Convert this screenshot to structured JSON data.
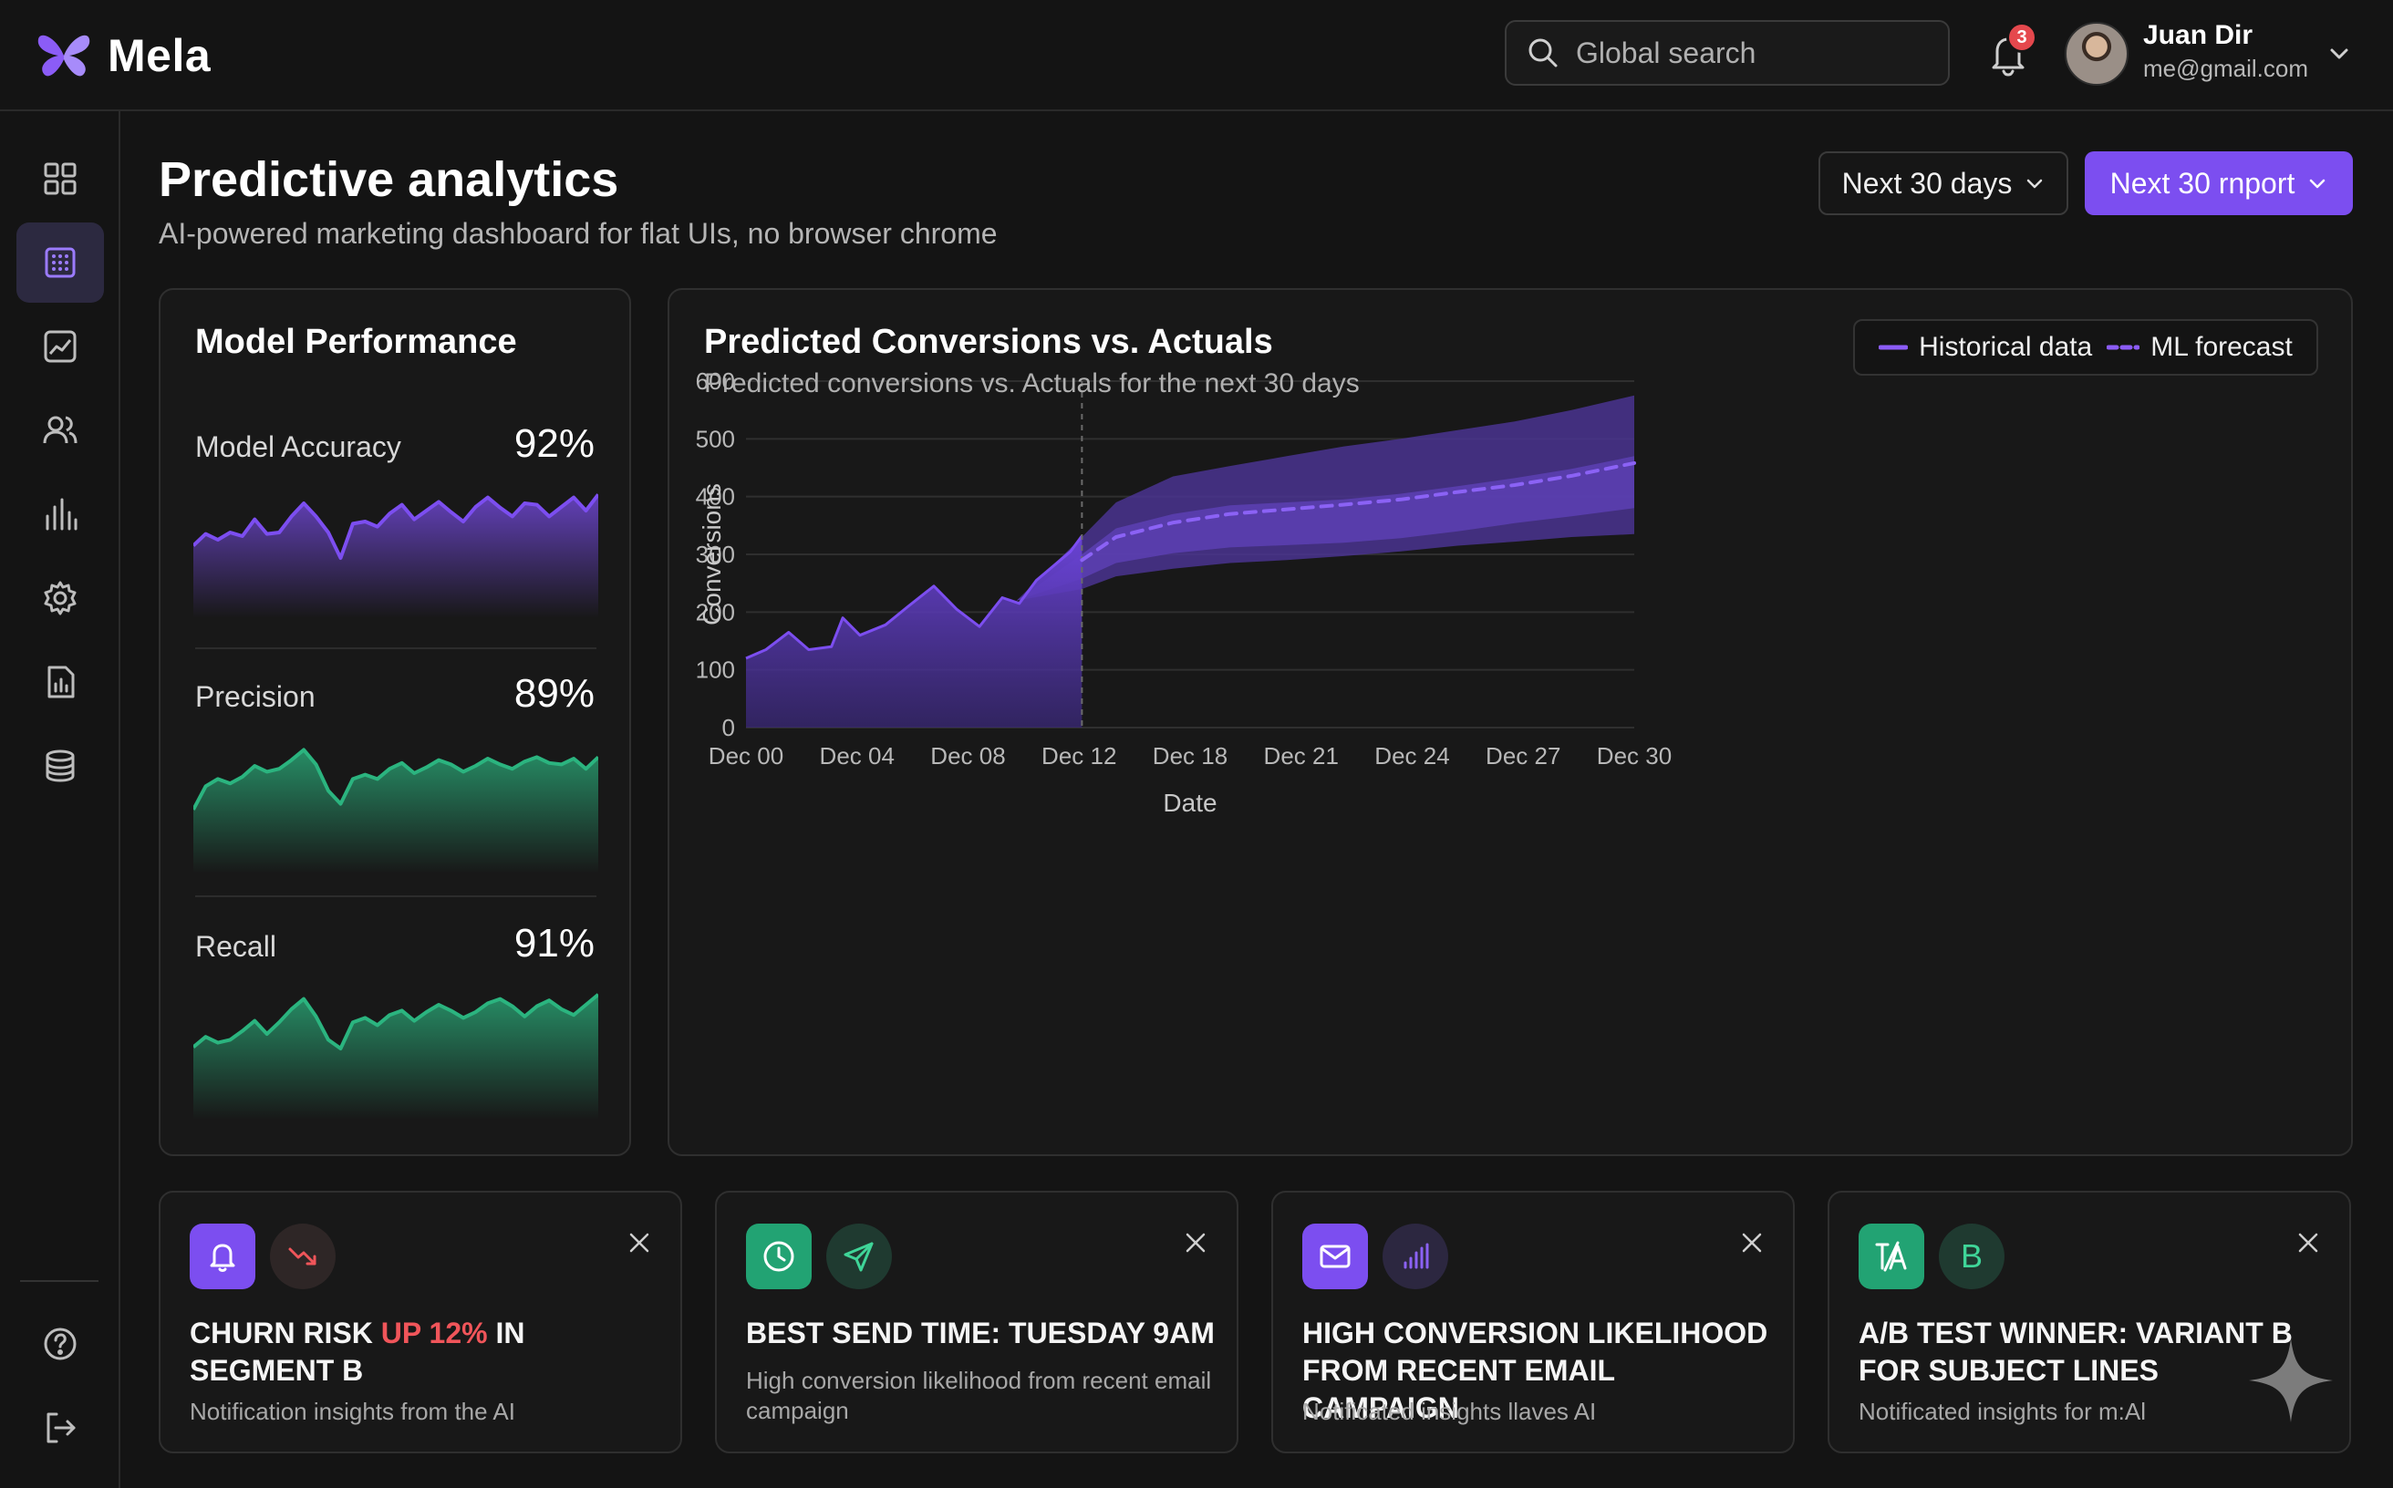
{
  "app": {
    "name": "Mela"
  },
  "search": {
    "placeholder": "Global search"
  },
  "notifications": {
    "count": "3"
  },
  "user": {
    "name": "Juan Dir",
    "email": "me@gmail.com"
  },
  "header": {
    "title": "Predictive analytics",
    "subtitle": "AI-powered marketing dashboard for flat UIs, no browser chrome",
    "range_label": "Next 30 days",
    "report_label": "Next 30 rnport"
  },
  "sidebar": {
    "items": [
      {
        "name": "grid-icon",
        "active": false
      },
      {
        "name": "dashboard-icon",
        "active": true
      },
      {
        "name": "trend-icon",
        "active": false
      },
      {
        "name": "users-icon",
        "active": false
      },
      {
        "name": "bar-chart-icon",
        "active": false
      },
      {
        "name": "gear-icon",
        "active": false
      },
      {
        "name": "report-icon",
        "active": false
      },
      {
        "name": "database-icon",
        "active": false
      }
    ],
    "bottom": [
      {
        "name": "help-icon"
      },
      {
        "name": "logout-icon"
      }
    ]
  },
  "performance": {
    "title": "Model Performance",
    "metrics": [
      {
        "label": "Model Accuracy",
        "value": "92%",
        "color": "#7c4ef0",
        "trend": [
          0.22,
          0.38,
          0.3,
          0.4,
          0.35,
          0.58,
          0.38,
          0.4,
          0.62,
          0.8,
          0.62,
          0.4,
          0.05,
          0.52,
          0.55,
          0.48,
          0.66,
          0.78,
          0.58,
          0.7,
          0.82,
          0.68,
          0.55,
          0.75,
          0.88,
          0.74,
          0.62,
          0.8,
          0.78,
          0.62,
          0.75,
          0.88,
          0.7,
          0.92
        ]
      },
      {
        "label": "Precision",
        "value": "89%",
        "color": "#2bb47f",
        "trend": [
          0.1,
          0.42,
          0.52,
          0.46,
          0.55,
          0.7,
          0.62,
          0.66,
          0.78,
          0.92,
          0.72,
          0.36,
          0.18,
          0.52,
          0.58,
          0.52,
          0.66,
          0.74,
          0.6,
          0.68,
          0.78,
          0.72,
          0.62,
          0.7,
          0.8,
          0.72,
          0.66,
          0.76,
          0.82,
          0.74,
          0.72,
          0.8,
          0.66,
          0.82
        ]
      },
      {
        "label": "Recall",
        "value": "91%",
        "color": "#2bb47f",
        "trend": [
          0.22,
          0.36,
          0.28,
          0.32,
          0.44,
          0.58,
          0.4,
          0.56,
          0.74,
          0.88,
          0.64,
          0.32,
          0.2,
          0.56,
          0.62,
          0.52,
          0.66,
          0.72,
          0.58,
          0.7,
          0.8,
          0.72,
          0.62,
          0.7,
          0.82,
          0.88,
          0.78,
          0.64,
          0.78,
          0.86,
          0.74,
          0.66,
          0.8,
          0.94
        ]
      }
    ]
  },
  "chart_data": {
    "type": "area",
    "title": "Predicted Conversions vs. Actuals",
    "subtitle": "Predicted conversions vs. Actuals for the next 30 days",
    "xlabel": "Date",
    "ylabel": "Conversions",
    "ylim": [
      0,
      600
    ],
    "yticks": [
      0,
      100,
      200,
      300,
      400,
      500,
      600
    ],
    "xticks": [
      "Dec 00",
      "Dec 04",
      "Dec 08",
      "Dec 12",
      "Dec 18",
      "Dec 21",
      "Dec 24",
      "Dec 27",
      "Dec 30"
    ],
    "grid": true,
    "legend": {
      "position": "top-right",
      "entries": [
        "Historical data",
        "ML forecast"
      ]
    },
    "colors": {
      "historical": "#7c4ef0",
      "forecast": "#8b62f5",
      "band_outer": "#4a3490",
      "band_inner": "#5b3fb0"
    },
    "historical": {
      "x": [
        0,
        0.7,
        1.5,
        2.2,
        3,
        3.4,
        4,
        4.9,
        5.7,
        6.6,
        7.4,
        8.2,
        9,
        9.6,
        10.2,
        11.4,
        11.8
      ],
      "y": [
        120,
        135,
        165,
        135,
        140,
        190,
        160,
        178,
        210,
        245,
        205,
        175,
        225,
        215,
        255,
        305,
        332
      ]
    },
    "forecast": {
      "x": [
        11.8,
        13,
        15,
        17,
        19,
        21,
        23,
        25,
        27,
        29,
        31.2
      ],
      "y": [
        290,
        330,
        355,
        370,
        378,
        386,
        395,
        408,
        420,
        436,
        458
      ]
    },
    "band_outer": {
      "x": [
        9.5,
        11.8,
        13,
        15,
        17,
        19,
        21,
        23,
        25,
        27,
        29,
        31.2
      ],
      "upper": [
        220,
        330,
        390,
        435,
        453,
        470,
        487,
        500,
        515,
        530,
        550,
        575
      ],
      "lower": [
        220,
        240,
        262,
        275,
        285,
        290,
        297,
        305,
        315,
        322,
        330,
        335
      ]
    },
    "band_inner": {
      "x": [
        9.5,
        11.8,
        13,
        15,
        17,
        19,
        21,
        23,
        25,
        27,
        29,
        31.2
      ],
      "upper": [
        220,
        300,
        345,
        370,
        385,
        390,
        395,
        405,
        418,
        432,
        448,
        470
      ],
      "lower": [
        220,
        258,
        285,
        302,
        312,
        316,
        320,
        328,
        340,
        354,
        366,
        380
      ]
    },
    "divider_x": 11.8
  },
  "insights": [
    {
      "title_pre": "CHURN RISK ",
      "title_hl": "UP 12%",
      "title_post": " IN SEGMENT B",
      "subtitle": "Notification insights from the AI",
      "icon1": {
        "name": "bell-icon",
        "bg": "#7c4ef0"
      },
      "icon2": {
        "name": "trend-down-icon",
        "bg": "#2e2626"
      }
    },
    {
      "title_pre": "BEST SEND TIME: TUESDAY 9AM",
      "title_hl": "",
      "title_post": "",
      "subtitle": "High conversion likelihood from recent email campaign",
      "icon1": {
        "name": "clock-icon",
        "bg": "#22a373"
      },
      "icon2": {
        "name": "send-icon",
        "bg": "#1f3a30"
      }
    },
    {
      "title_pre": "HIGH CONVERSION LIKELIHOOD FROM RECENT EMAIL CAMPAIGN",
      "title_hl": "",
      "title_post": "",
      "subtitle": "Notificated insights llaves AI",
      "icon1": {
        "name": "mail-icon",
        "bg": "#7c4ef0"
      },
      "icon2": {
        "name": "signal-icon",
        "bg": "#2c2740"
      }
    },
    {
      "title_pre": "A/B TEST WINNER: VARIANT B FOR SUBJECT LINES",
      "title_hl": "",
      "title_post": "",
      "subtitle": "Notificated insights for m:Al",
      "icon1": {
        "name": "ab-test-icon",
        "bg": "#22a373"
      },
      "icon2": {
        "name": "variant-b-icon",
        "bg": "#1f3a30",
        "text": "B"
      }
    }
  ]
}
